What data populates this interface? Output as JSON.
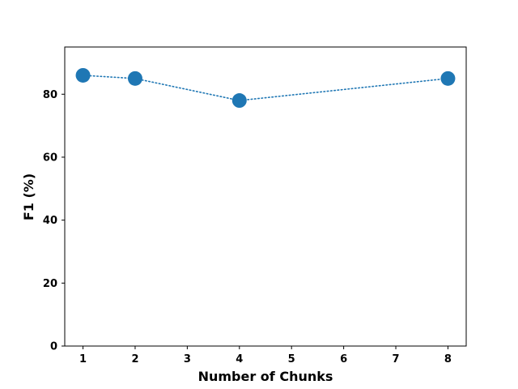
{
  "chart_data": {
    "type": "line",
    "title": "",
    "xlabel": "Number of Chunks",
    "ylabel": "F1 (%)",
    "xlim": [
      0.65,
      8.35
    ],
    "ylim": [
      0,
      95
    ],
    "xticks": [
      1,
      2,
      3,
      4,
      5,
      6,
      7,
      8
    ],
    "yticks": [
      0,
      20,
      40,
      60,
      80
    ],
    "grid": false,
    "legend": "none",
    "series": [
      {
        "x": [
          1,
          2,
          4,
          8
        ],
        "y": [
          86,
          85,
          78,
          85
        ],
        "color": "#1f77b4",
        "line_style": "dotted",
        "marker": "circle"
      }
    ]
  }
}
